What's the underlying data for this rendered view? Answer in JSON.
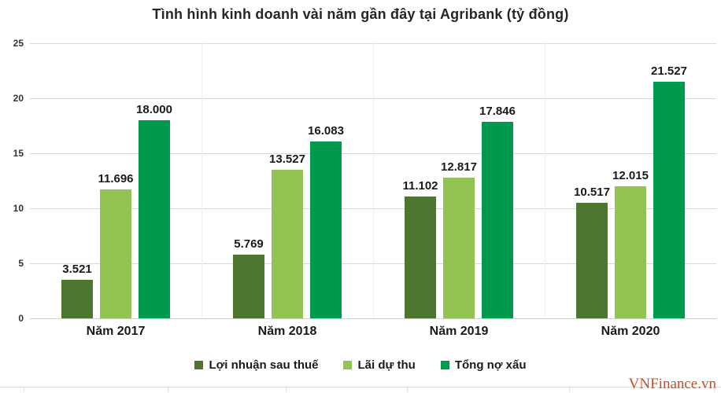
{
  "chart_data": {
    "type": "bar",
    "title": "Tình hình kinh doanh vài năm gần đây tại Agribank (tỷ đồng)",
    "unit": "tỷ đồng",
    "categories": [
      "Năm 2017",
      "Năm 2018",
      "Năm 2019",
      "Năm 2020"
    ],
    "series": [
      {
        "name": "Lợi nhuận sau thuế",
        "color": "#4d7631",
        "values": [
          3521,
          5769,
          11102,
          10517
        ],
        "labels": [
          "3.521",
          "5.769",
          "11.102",
          "10.517"
        ]
      },
      {
        "name": "Lãi dự thu",
        "color": "#92c353",
        "values": [
          11696,
          13527,
          12817,
          12015
        ],
        "labels": [
          "11.696",
          "13.527",
          "12.817",
          "12.015"
        ]
      },
      {
        "name": "Tổng nợ xấu",
        "color": "#009a4e",
        "values": [
          18000,
          16083,
          17846,
          21527
        ],
        "labels": [
          "18.000",
          "16.083",
          "17.846",
          "21.527"
        ]
      }
    ],
    "y_axis": {
      "tick_labels": [
        "0",
        "5",
        "10",
        "15",
        "20",
        "25"
      ],
      "tick_values": [
        0,
        5000,
        10000,
        15000,
        20000,
        25000
      ],
      "min": 0,
      "max": 25000
    },
    "grid": true,
    "legend_position": "bottom"
  },
  "watermark": {
    "text": "VNFinance.vn",
    "color": "#c8511f"
  }
}
